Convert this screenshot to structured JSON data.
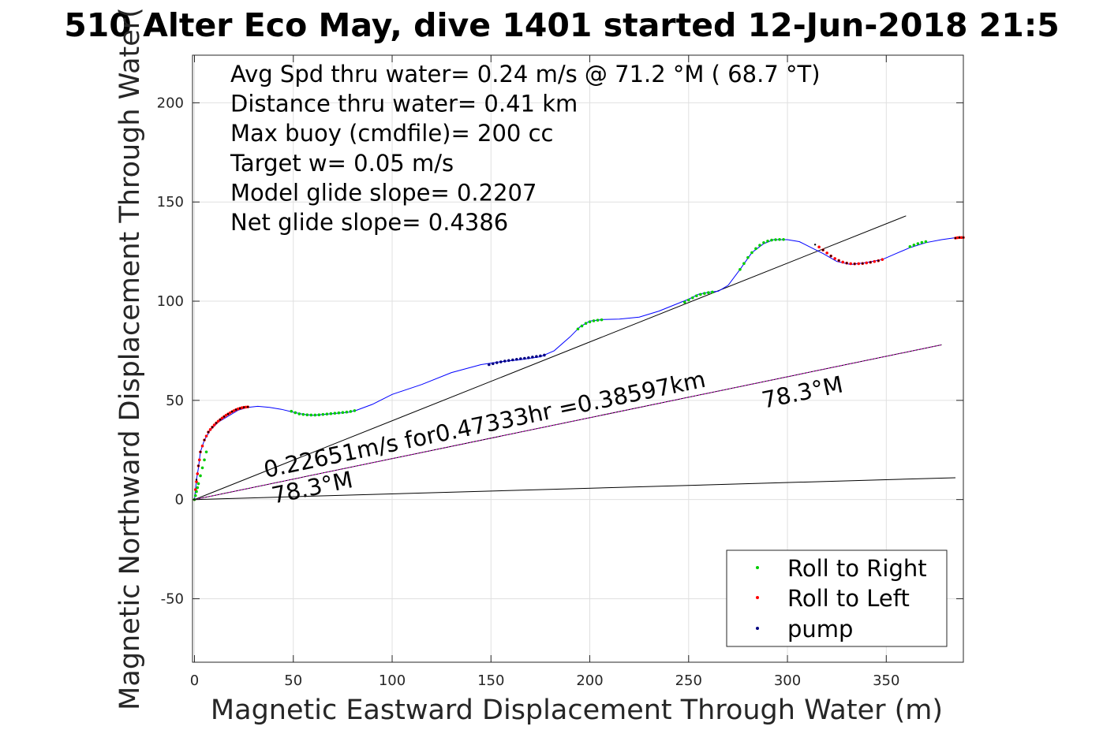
{
  "chart_data": {
    "type": "scatter",
    "title": "510 Alter Eco May, dive 1401 started 12-Jun-2018 21:5",
    "xlabel": "Magnetic Eastward Displacement Through Water (m)",
    "ylabel": "Magnetic Northward Displacement Through Water(",
    "xlim": [
      -1,
      389
    ],
    "ylim": [
      -82,
      224
    ],
    "xticks": [
      0,
      50,
      100,
      150,
      200,
      250,
      300,
      350
    ],
    "yticks": [
      -50,
      0,
      50,
      100,
      150,
      200
    ],
    "grid": true,
    "legend_position": "bottom-right",
    "info_lines": [
      "Avg Spd thru water=  0.24 m/s @  71.2 °M ( 68.7 °T)",
      "Distance thru water=  0.41 km",
      "Max buoy (cmdfile)= 200 cc",
      "Target w= 0.05 m/s",
      "Model glide slope= 0.2207",
      "Net glide slope= 0.4386"
    ],
    "track": {
      "color": "#0000ff",
      "x": [
        0,
        0.5,
        1,
        2,
        3,
        5,
        8,
        12,
        17,
        22,
        27,
        32,
        38,
        44,
        50,
        55,
        60,
        66,
        72,
        78,
        82,
        90,
        100,
        115,
        130,
        145,
        155,
        165,
        175,
        182,
        190,
        195,
        200,
        207,
        215,
        225,
        235,
        245,
        250,
        255,
        260,
        265,
        270,
        276,
        282,
        288,
        293,
        300,
        306,
        312,
        318,
        325,
        332,
        340,
        348,
        355,
        362,
        370,
        378,
        385,
        389
      ],
      "y": [
        0,
        5,
        10,
        16,
        24,
        30,
        35,
        39,
        42,
        45,
        46.5,
        47,
        46.5,
        45.5,
        44,
        43,
        42.5,
        43,
        43.5,
        44,
        45,
        48,
        53,
        58,
        64,
        68,
        69.5,
        70.5,
        72,
        75,
        82,
        87,
        90,
        90.8,
        91,
        92,
        95,
        99,
        101,
        103.5,
        104.5,
        105,
        108,
        116,
        124.5,
        129,
        131,
        131,
        130,
        127,
        124,
        120,
        118.5,
        119.5,
        121,
        124,
        127,
        129.5,
        131,
        132,
        132
      ]
    },
    "markers": {
      "roll_right": {
        "label": "Roll to Right",
        "color": "#00cc00",
        "x": [
          0,
          0.5,
          1,
          1.5,
          2,
          3,
          4,
          5,
          6,
          49,
          51,
          53,
          55,
          57,
          59,
          61,
          63,
          65,
          67,
          69,
          71,
          73,
          75,
          77,
          79,
          81,
          194,
          196,
          198,
          200,
          202,
          204,
          206,
          248,
          250,
          252,
          254,
          256,
          258,
          260,
          262,
          276,
          278,
          280,
          282,
          284,
          286,
          288,
          290,
          292,
          294,
          296,
          298,
          362,
          364,
          366,
          368,
          370
        ],
        "y": [
          0,
          2,
          4,
          6,
          8,
          12,
          16,
          20,
          24,
          44.5,
          43.8,
          43.2,
          42.9,
          42.7,
          42.6,
          42.6,
          42.7,
          42.9,
          43.1,
          43.3,
          43.5,
          43.7,
          43.9,
          44.1,
          44.4,
          44.8,
          86,
          87.5,
          88.8,
          89.6,
          90.1,
          90.4,
          90.6,
          99.5,
          100.6,
          101.7,
          102.7,
          103.4,
          103.9,
          104.3,
          104.6,
          116,
          119,
          122,
          124.5,
          126.5,
          128.2,
          129.5,
          130.3,
          130.8,
          131,
          131.1,
          131.1,
          127.5,
          128.3,
          129,
          129.6,
          130
        ]
      },
      "roll_left": {
        "label": "Roll to Left",
        "color": "#ff0000",
        "x": [
          0,
          0.5,
          1,
          1.5,
          2,
          2.5,
          3,
          4,
          5,
          6,
          7,
          8,
          9,
          10,
          11,
          12,
          13,
          14,
          15,
          16,
          17,
          18,
          19,
          20,
          21,
          22,
          23,
          24,
          25,
          26,
          27,
          316,
          318,
          320,
          322,
          324,
          326,
          328,
          330,
          332,
          334,
          336,
          338,
          340,
          342,
          344,
          346,
          348,
          385,
          386,
          387,
          388,
          389
        ],
        "y": [
          0,
          5,
          9,
          13,
          17,
          20,
          24,
          27,
          30,
          32,
          34,
          35.3,
          36.5,
          37.6,
          38.6,
          39.5,
          40.3,
          41.1,
          41.8,
          42.5,
          43.1,
          43.7,
          44.3,
          44.8,
          45.3,
          45.7,
          46,
          46.3,
          46.5,
          46.6,
          46.7,
          127.3,
          125.8,
          124.3,
          122.8,
          121.5,
          120.5,
          119.7,
          119.2,
          118.9,
          118.8,
          118.9,
          119,
          119.3,
          119.6,
          120,
          120.4,
          121,
          131.8,
          132,
          132.1,
          132.1,
          132.1
        ]
      },
      "pump": {
        "label": "pump",
        "color": "#000080",
        "x": [
          149,
          151,
          153,
          155,
          157,
          159,
          161,
          163,
          165,
          167,
          169,
          171,
          173,
          175,
          177
        ],
        "y": [
          68,
          68.5,
          69,
          69.4,
          69.8,
          70.1,
          70.4,
          70.7,
          71,
          71.2,
          71.5,
          71.8,
          72.1,
          72.4,
          72.8
        ],
        "dots_on_track": {
          "x": [
            0,
            1,
            2,
            3,
            5,
            7,
            9,
            11,
            13,
            15,
            17,
            19,
            21,
            23,
            25,
            27,
            314,
            318,
            322,
            326,
            330,
            334,
            338,
            342,
            346,
            385,
            387,
            389
          ],
          "y": [
            0,
            10,
            17,
            24,
            30,
            34,
            36.5,
            38.6,
            40.3,
            41.8,
            43.1,
            44.3,
            45.3,
            46,
            46.5,
            46.7,
            128.5,
            125.8,
            122.8,
            120.5,
            119.2,
            118.8,
            119,
            119.6,
            120.4,
            131.8,
            132.1,
            132.1
          ]
        }
      }
    },
    "lines": [
      {
        "name": "",
        "color": "#000000",
        "x": [
          0,
          360
        ],
        "y": [
          0,
          143
        ]
      },
      {
        "name": "",
        "color": "#000000",
        "x": [
          0,
          385
        ],
        "y": [
          0,
          11
        ]
      },
      {
        "name": "",
        "color": "#000000",
        "x": [
          0,
          378
        ],
        "y": [
          0,
          78
        ]
      },
      {
        "name": "",
        "color": "#cc00cc",
        "dashed": true,
        "x": [
          0,
          378
        ],
        "y": [
          0,
          78
        ]
      }
    ],
    "annotations": [
      {
        "text": "0.22651m/s for0.47333hr =0.38597km",
        "x": 36,
        "y": 11,
        "angle_deg": -11.7
      },
      {
        "text": "78.3°M",
        "x": 40,
        "y": -2,
        "angle_deg": -11.7
      },
      {
        "text": "78.3°M",
        "x": 288,
        "y": 46,
        "angle_deg": -11.7
      }
    ]
  }
}
